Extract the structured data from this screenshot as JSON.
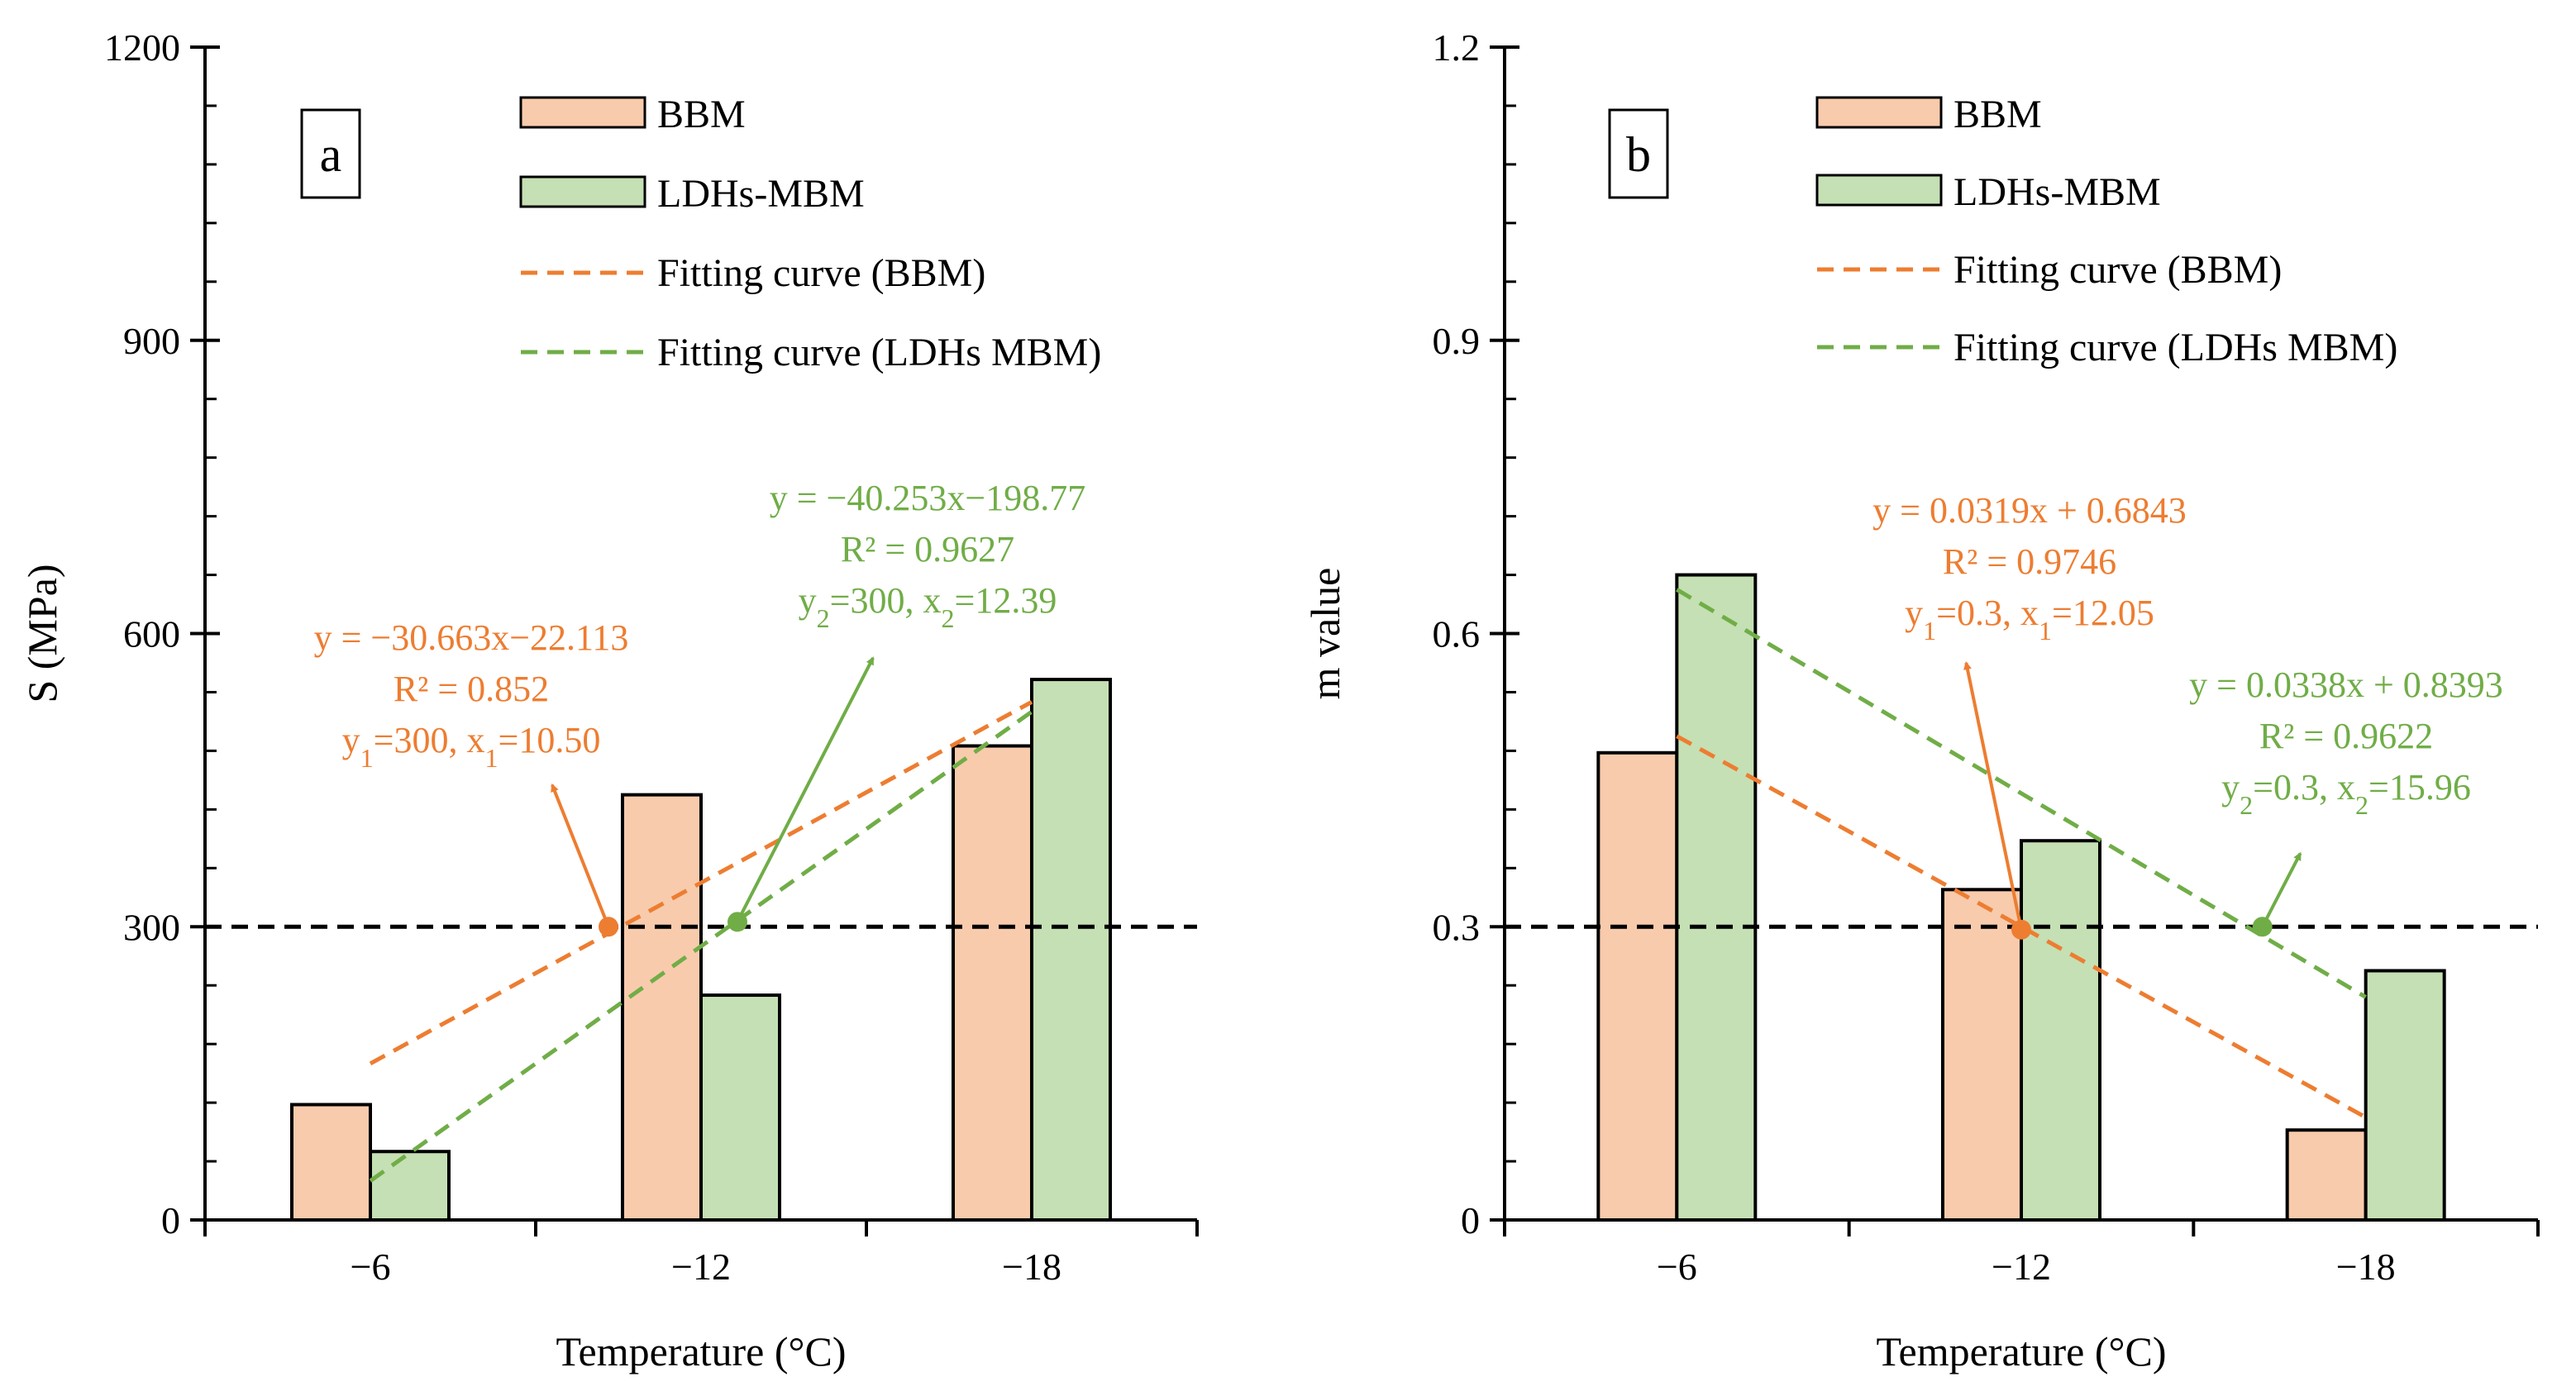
{
  "chart_data": [
    {
      "type": "bar",
      "panel_label": "a",
      "categories": [
        "−6",
        "−12",
        "−18"
      ],
      "xlabel": "Temperature (°C)",
      "ylabel": "S (MPa)",
      "ylim": [
        0,
        1200
      ],
      "yticks": [
        "0",
        "300",
        "600",
        "900",
        "1200"
      ],
      "ytick_values": [
        0,
        300,
        600,
        900,
        1200
      ],
      "series": [
        {
          "name": "BBM",
          "values": [
            118,
            435,
            485
          ],
          "color": "#f8cbad"
        },
        {
          "name": "LDHs-MBM",
          "values": [
            70,
            230,
            553
          ],
          "color": "#c5e0b4"
        }
      ],
      "fits": [
        {
          "name": "Fitting curve (BBM)",
          "color": "#ed7d31",
          "start": [
            0,
            160
          ],
          "end": [
            2,
            530
          ]
        },
        {
          "name": "Fitting curve (LDHs MBM)",
          "color": "#70ad47",
          "start": [
            0,
            40
          ],
          "end": [
            2,
            520
          ]
        }
      ],
      "threshold": 300,
      "annotations": [
        {
          "color": "#ed7d31",
          "lines": [
            "y = −30.663x−22.113",
            "R² = 0.852"
          ],
          "sub_line": {
            "a": "y",
            "a_sub": "1",
            "a_val": "=300, ",
            "b": "x",
            "b_sub": "1",
            "b_val": "=10.50"
          }
        },
        {
          "color": "#70ad47",
          "lines": [
            "y = −40.253x−198.77",
            "R² = 0.9627"
          ],
          "sub_line": {
            "a": "y",
            "a_sub": "2",
            "a_val": "=300, ",
            "b": "x",
            "b_sub": "2",
            "b_val": "=12.39"
          }
        }
      ],
      "markers": [
        {
          "color": "#ed7d31",
          "point": [
            0.72,
            300
          ],
          "arrow_to": [
            0.55,
            445
          ]
        },
        {
          "color": "#70ad47",
          "point": [
            1.11,
            305
          ],
          "arrow_to": [
            1.52,
            575
          ]
        }
      ]
    },
    {
      "type": "bar",
      "panel_label": "b",
      "categories": [
        "−6",
        "−12",
        "−18"
      ],
      "xlabel": "Temperature (°C)",
      "ylabel": "m value",
      "ylim": [
        0,
        1.2
      ],
      "yticks": [
        "0",
        "0.3",
        "0.6",
        "0.9",
        "1.2"
      ],
      "ytick_values": [
        0,
        0.3,
        0.6,
        0.9,
        1.2
      ],
      "series": [
        {
          "name": "BBM",
          "values": [
            0.478,
            0.338,
            0.092
          ],
          "color": "#f8cbad"
        },
        {
          "name": "LDHs-MBM",
          "values": [
            0.66,
            0.388,
            0.255
          ],
          "color": "#c5e0b4"
        }
      ],
      "fits": [
        {
          "name": "Fitting curve (BBM)",
          "color": "#ed7d31",
          "start": [
            0,
            0.495
          ],
          "end": [
            2,
            0.105
          ]
        },
        {
          "name": "Fitting curve (LDHs MBM)",
          "color": "#70ad47",
          "start": [
            0,
            0.645
          ],
          "end": [
            2,
            0.228
          ]
        }
      ],
      "threshold": 0.3,
      "annotations": [
        {
          "color": "#ed7d31",
          "lines": [
            "y = 0.0319x + 0.6843",
            "R² = 0.9746"
          ],
          "sub_line": {
            "a": "y",
            "a_sub": "1",
            "a_val": "=0.3, ",
            "b": "x",
            "b_sub": "1",
            "b_val": "=12.05"
          }
        },
        {
          "color": "#70ad47",
          "lines": [
            "y = 0.0338x + 0.8393",
            "R² = 0.9622"
          ],
          "sub_line": {
            "a": "y",
            "a_sub": "2",
            "a_val": "=0.3, ",
            "b": "x",
            "b_sub": "2",
            "b_val": "=15.96"
          }
        }
      ],
      "markers": [
        {
          "color": "#ed7d31",
          "point": [
            1.0,
            0.297
          ],
          "arrow_to": [
            0.84,
            0.57
          ]
        },
        {
          "color": "#70ad47",
          "point": [
            1.7,
            0.3
          ],
          "arrow_to": [
            1.81,
            0.375
          ]
        }
      ]
    }
  ]
}
